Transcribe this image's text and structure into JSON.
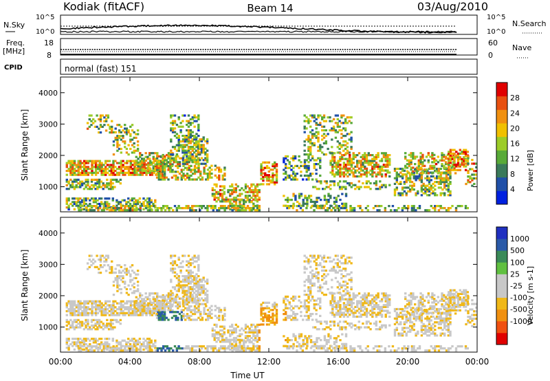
{
  "header": {
    "station": "Kodiak (fitACF)",
    "beam": "Beam 14",
    "date": "03/Aug/2010"
  },
  "noise_panel": {
    "left_label": "N.Sky",
    "right_label": "N.Search",
    "left_ticks": [
      "10^5",
      "10^0"
    ],
    "right_ticks": [
      "10^5",
      "10^0"
    ]
  },
  "freq_panel": {
    "left_label_1": "Freq.",
    "left_label_2": "[MHz]",
    "left_ticks": [
      "18",
      "8"
    ],
    "right_label": "Nave",
    "right_ticks": [
      "60",
      "0"
    ]
  },
  "cpid_panel": {
    "label": "CPID",
    "mode": "normal (fast) 151"
  },
  "colors": {
    "power": [
      "#0020e0",
      "#2050a8",
      "#3a7a5a",
      "#58aa38",
      "#9ccc28",
      "#f0c000",
      "#f09010",
      "#e85010",
      "#e00000"
    ],
    "velocity": [
      "#e00000",
      "#f05010",
      "#f09010",
      "#f0b818",
      "#c8c8c8",
      "#c8c8c8",
      "#60c040",
      "#3a8a58",
      "#2a5aa8",
      "#2030c0"
    ]
  },
  "chart_data": [
    {
      "type": "heatmap",
      "name": "power",
      "ylabel": "Slant Range [km]",
      "yticks": [
        "1000",
        "2000",
        "3000",
        "4000"
      ],
      "ylim": [
        200,
        4500
      ],
      "colorbar_label": "Power [dB]",
      "colorbar_ticks": [
        "4",
        "8",
        "12",
        "16",
        "20",
        "24",
        "28"
      ],
      "clim": [
        0,
        32
      ]
    },
    {
      "type": "heatmap",
      "name": "velocity",
      "ylabel": "Slant Range [km]",
      "yticks": [
        "1000",
        "2000",
        "3000",
        "4000"
      ],
      "ylim": [
        200,
        4500
      ],
      "colorbar_label": "Velocity [m s-1]",
      "colorbar_ticks": [
        "1000",
        "500",
        "100",
        "25",
        "-25",
        "-100",
        "-500",
        "-1000"
      ]
    }
  ],
  "x_axis": {
    "label": "Time UT",
    "ticks": [
      "00:00",
      "04:00",
      "08:00",
      "12:00",
      "16:00",
      "20:00",
      "00:00"
    ],
    "xlim": [
      0,
      24
    ]
  }
}
